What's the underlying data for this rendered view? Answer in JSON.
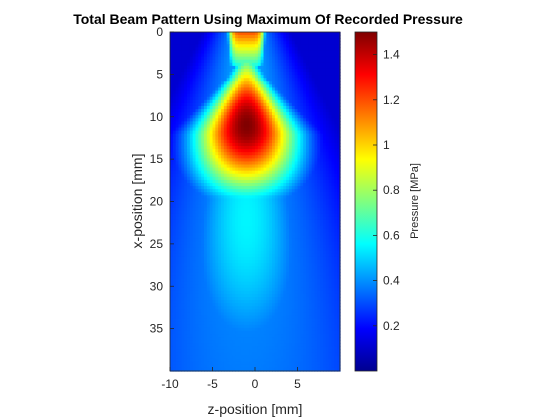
{
  "chart_data": {
    "type": "heatmap",
    "title": "Total Beam Pattern Using Maximum Of Recorded Pressure",
    "xlabel": "z-position [mm]",
    "ylabel": "x-position [mm]",
    "xlim": [
      -10,
      10
    ],
    "ylim": [
      0,
      40
    ],
    "y_reversed": true,
    "x_ticks": [
      -10,
      -5,
      0,
      5
    ],
    "y_ticks": [
      0,
      5,
      10,
      15,
      20,
      25,
      30,
      35
    ],
    "colormap": "jet",
    "colorbar": {
      "label": "Pressure [MPa]",
      "range": [
        0.0,
        1.5
      ],
      "ticks": [
        0.2,
        0.4,
        0.6,
        0.8,
        1,
        1.2,
        1.4
      ]
    },
    "grid": false,
    "features": {
      "focus_peak_pressure": 1.5,
      "focus_x_mm": 11,
      "focus_z_mm": -1,
      "source_aperture_z_mm": [
        -3.2,
        1.2
      ],
      "far_field_pressure": 0.4
    }
  }
}
